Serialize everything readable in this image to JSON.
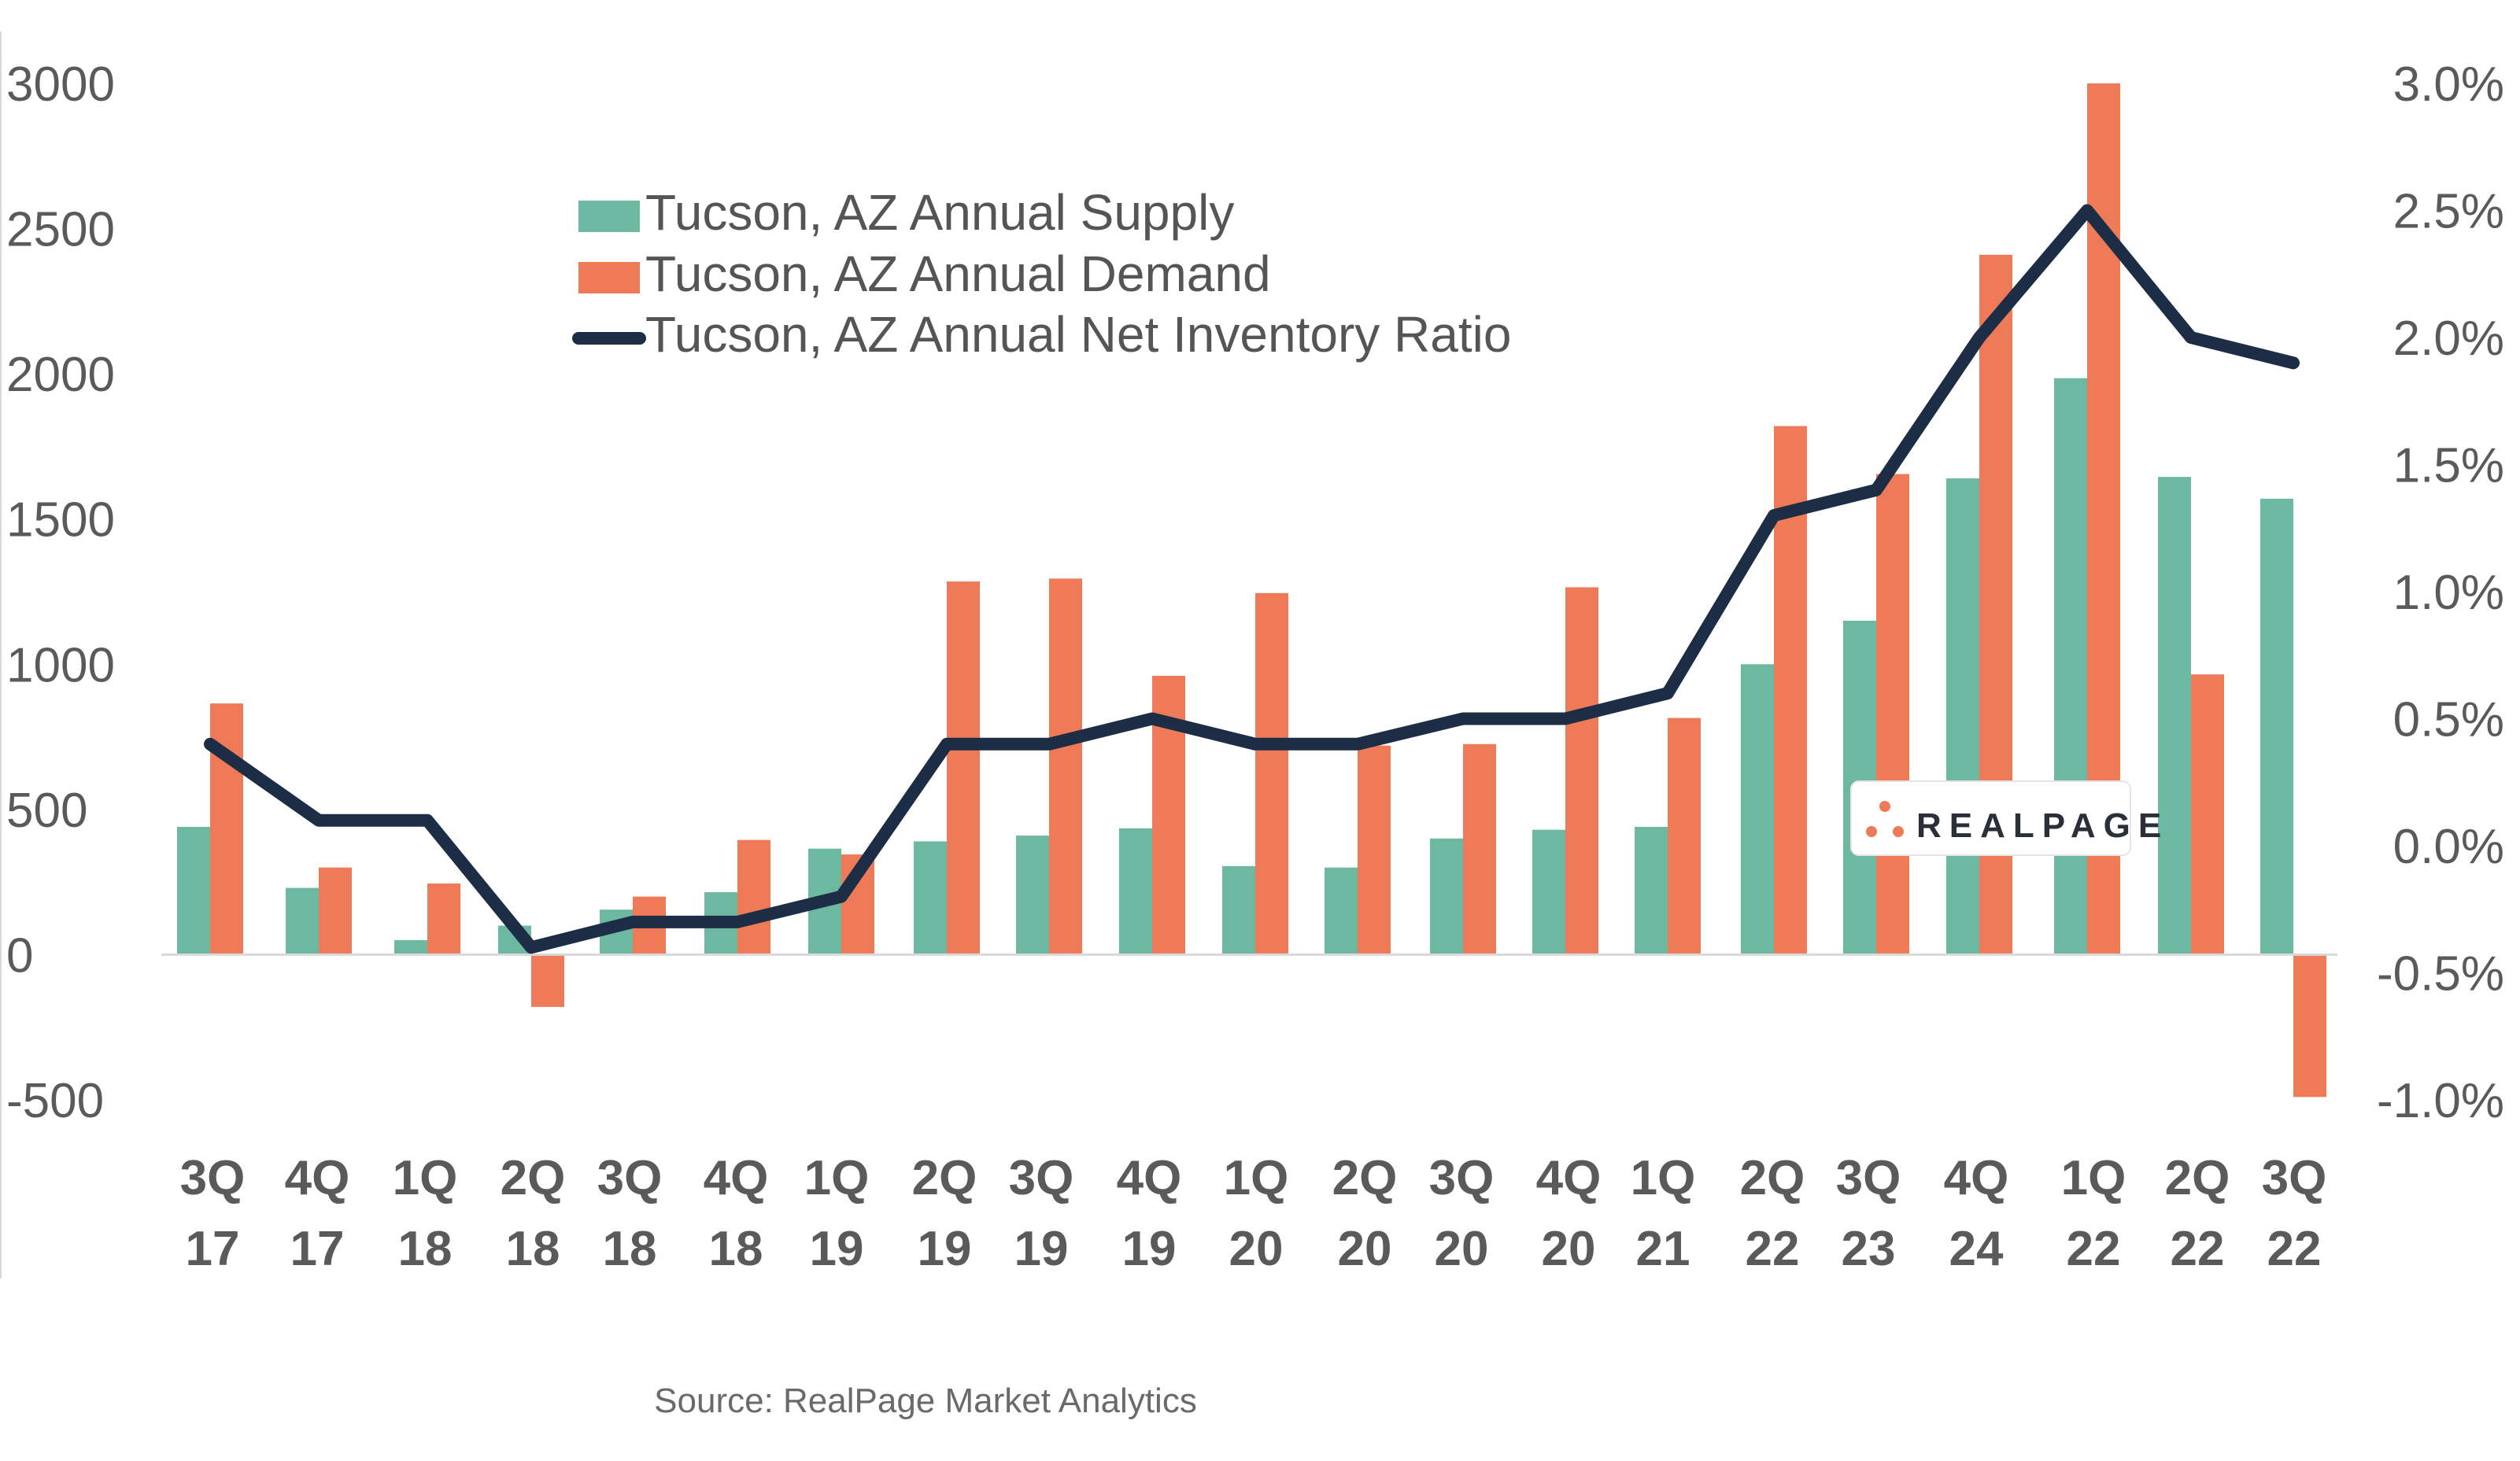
{
  "chart_data": {
    "type": "bar",
    "categories": [
      [
        "3Q",
        "17"
      ],
      [
        "4Q",
        "17"
      ],
      [
        "1Q",
        "18"
      ],
      [
        "2Q",
        "18"
      ],
      [
        "3Q",
        "18"
      ],
      [
        "4Q",
        "18"
      ],
      [
        "1Q",
        "19"
      ],
      [
        "2Q",
        "19"
      ],
      [
        "3Q",
        "19"
      ],
      [
        "4Q",
        "19"
      ],
      [
        "1Q",
        "20"
      ],
      [
        "2Q",
        "20"
      ],
      [
        "3Q",
        "20"
      ],
      [
        "4Q",
        "20"
      ],
      [
        "1Q",
        "21"
      ],
      [
        "2Q",
        "22"
      ],
      [
        "3Q",
        "23"
      ],
      [
        "4Q",
        "24"
      ],
      [
        "1Q",
        "22"
      ],
      [
        "2Q",
        "22"
      ],
      [
        "3Q",
        "22"
      ]
    ],
    "series": [
      {
        "name": "Tucson, AZ Annual Supply",
        "type": "bar",
        "axis": "left",
        "color": "#6cb8a0",
        "values": [
          440,
          230,
          50,
          100,
          155,
          215,
          365,
          390,
          410,
          435,
          305,
          300,
          400,
          430,
          440,
          1000,
          1150,
          1640,
          1985,
          1645,
          1570
        ]
      },
      {
        "name": "Tucson, AZ Annual Demand",
        "type": "bar",
        "axis": "left",
        "color": "#ee7a58",
        "values": [
          865,
          300,
          245,
          -180,
          200,
          395,
          345,
          1285,
          1295,
          960,
          1245,
          720,
          725,
          1265,
          815,
          1820,
          1655,
          2410,
          3000,
          965,
          -490
        ]
      },
      {
        "name": "Tucson, AZ Annual Net Inventory Ratio",
        "type": "line",
        "axis": "right",
        "color": "#1c2d45",
        "values": [
          0.4,
          0.1,
          0.1,
          -0.4,
          -0.3,
          -0.3,
          -0.2,
          0.4,
          0.4,
          0.5,
          0.4,
          0.4,
          0.5,
          0.5,
          0.6,
          1.3,
          1.4,
          2.0,
          2.5,
          2.0,
          1.9
        ]
      }
    ],
    "left_axis": {
      "ylim": [
        -500,
        3000
      ],
      "ticks": [
        3000,
        2500,
        2000,
        1500,
        1000,
        500,
        0,
        -500
      ],
      "tick_labels": [
        "3000",
        "2500",
        "2000",
        "1500",
        "1000",
        "500",
        "0",
        "-500"
      ]
    },
    "right_axis": {
      "ylim": [
        -1.0,
        3.0
      ],
      "ticks": [
        3.0,
        2.5,
        2.0,
        1.5,
        1.0,
        0.5,
        0.0,
        -0.5,
        -1.0
      ],
      "tick_labels": [
        "3.0%",
        "2.5%",
        "2.0%",
        "1.5%",
        "1.0%",
        "0.5%",
        "0.0%",
        "-0.5%",
        "-1.0%"
      ]
    },
    "legend_position": "top-left-center",
    "grid": false
  },
  "source": "Source: RealPage Market Analytics",
  "logo": {
    "text": "REALPAGE",
    "dot_color": "#ee7a58"
  }
}
